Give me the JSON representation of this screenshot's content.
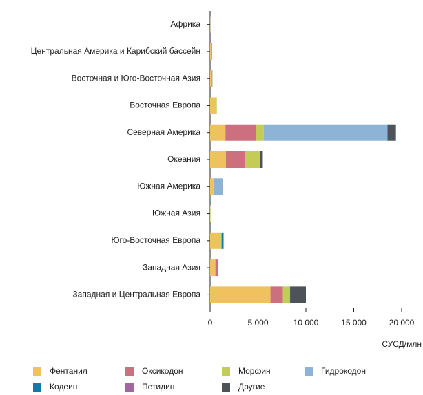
{
  "chart_data": {
    "type": "bar",
    "orientation": "horizontal",
    "stacked": true,
    "categories": [
      "Африка",
      "Центральная Америка и Карибский бассейн",
      "Восточная и Юго-Восточная Азия",
      "Восточная Европа",
      "Северная Америка",
      "Океания",
      "Южная Америка",
      "Южная Азия",
      "Юго-Восточная Европа",
      "Западная Азия",
      "Западная и Центральная Европа"
    ],
    "series": [
      {
        "name": "Фентанил",
        "color": "#f0c25f",
        "values": [
          20,
          50,
          150,
          650,
          1600,
          1650,
          350,
          30,
          1100,
          550,
          6300
        ]
      },
      {
        "name": "Оксикодон",
        "color": "#cc6f7e",
        "values": [
          0,
          10,
          50,
          0,
          3200,
          2000,
          0,
          0,
          0,
          200,
          1300
        ]
      },
      {
        "name": "Морфин",
        "color": "#c3cc55",
        "values": [
          5,
          10,
          30,
          50,
          800,
          1600,
          20,
          10,
          100,
          0,
          700
        ]
      },
      {
        "name": "Гидрокодон",
        "color": "#8db3d6",
        "values": [
          0,
          150,
          0,
          0,
          12900,
          0,
          950,
          0,
          0,
          0,
          50
        ]
      },
      {
        "name": "Кодеин",
        "color": "#1778a8",
        "values": [
          0,
          0,
          0,
          0,
          50,
          0,
          0,
          0,
          150,
          0,
          0
        ]
      },
      {
        "name": "Петидин",
        "color": "#a0689f",
        "values": [
          0,
          0,
          10,
          0,
          0,
          0,
          0,
          0,
          0,
          50,
          0
        ]
      },
      {
        "name": "Другие",
        "color": "#4d5357",
        "values": [
          0,
          0,
          10,
          0,
          850,
          250,
          0,
          0,
          50,
          50,
          1650
        ]
      }
    ],
    "xlim": [
      0,
      20000
    ],
    "xticks": [
      0,
      {
        "value": 5000,
        "label": "5 000"
      },
      {
        "value": 10000,
        "label": "10 000"
      },
      {
        "value": 15000,
        "label": "15 000"
      },
      {
        "value": 20000,
        "label": "20 000"
      }
    ],
    "xlabel": "СУСД/млн"
  }
}
